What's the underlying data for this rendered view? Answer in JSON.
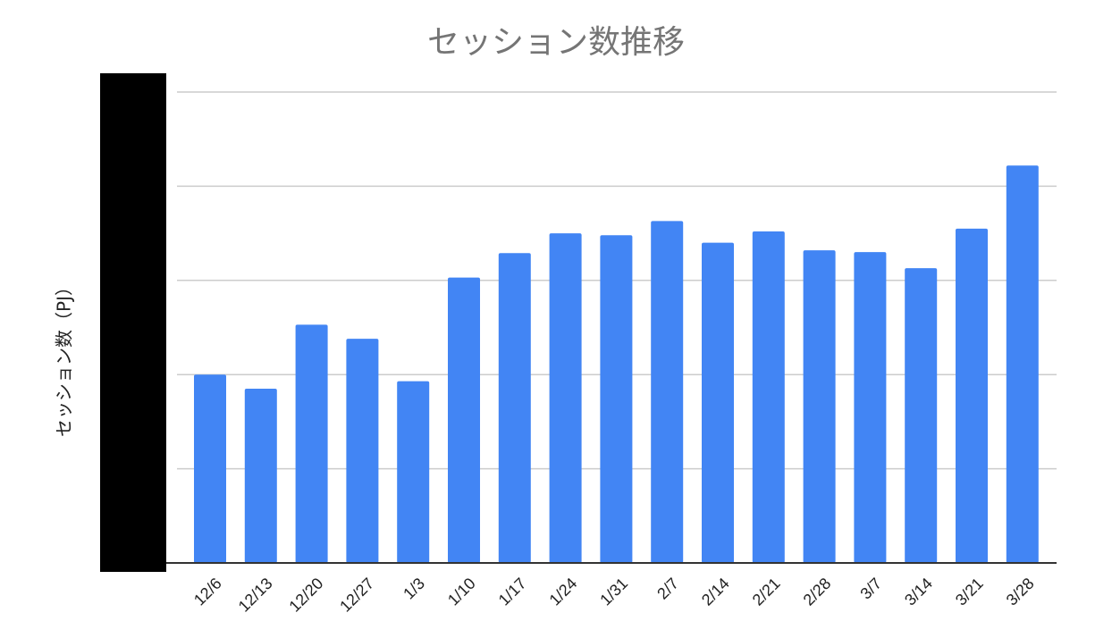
{
  "chart_data": {
    "type": "bar",
    "title": "セッション数推移",
    "xlabel": "",
    "ylabel": "セッション数（PJ）",
    "categories": [
      "12/6",
      "12/13",
      "12/20",
      "12/27",
      "1/3",
      "1/10",
      "1/17",
      "1/24",
      "1/31",
      "2/7",
      "2/14",
      "2/21",
      "2/28",
      "3/7",
      "3/14",
      "3/21",
      "3/28"
    ],
    "values": [
      2.0,
      1.85,
      2.53,
      2.38,
      1.93,
      3.03,
      3.29,
      3.5,
      3.48,
      3.63,
      3.4,
      3.52,
      3.32,
      3.3,
      3.13,
      3.55,
      4.22
    ],
    "ylim": [
      0,
      5
    ],
    "grid": true,
    "legend": "none",
    "colors": {
      "bar": "#4285f4",
      "grid": "#cccccc",
      "axis": "#333333",
      "title": "#757575",
      "redaction": "#000000"
    }
  }
}
